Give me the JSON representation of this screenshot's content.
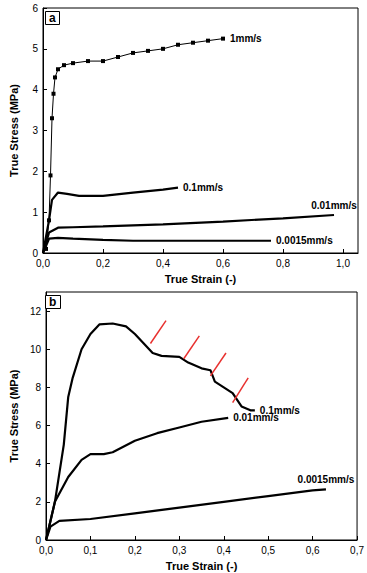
{
  "chart_data": [
    {
      "type": "line",
      "title": "a",
      "x_label": "True Strain (-)",
      "y_label": "True Stress (MPa)",
      "xlim": [
        0,
        1.05
      ],
      "xticks": [
        {
          "value": 0,
          "label": "0,0"
        },
        {
          "value": 0.2,
          "label": "0,2"
        },
        {
          "value": 0.4,
          "label": "0,4"
        },
        {
          "value": 0.6,
          "label": "0,6"
        },
        {
          "value": 0.8,
          "label": "0,8"
        },
        {
          "value": 1.0,
          "label": "1,0"
        }
      ],
      "ylim": [
        0,
        6
      ],
      "yticks": [
        0,
        1,
        2,
        3,
        4,
        5,
        6
      ],
      "grid": false,
      "series": [
        {
          "name": "1mm/s",
          "color": "#000000",
          "marker": "square",
          "x": [
            0.01,
            0.02,
            0.025,
            0.03,
            0.035,
            0.04,
            0.05,
            0.07,
            0.1,
            0.15,
            0.2,
            0.25,
            0.3,
            0.35,
            0.4,
            0.45,
            0.5,
            0.55,
            0.6
          ],
          "values": [
            0.1,
            0.8,
            1.9,
            3.3,
            3.9,
            4.3,
            4.5,
            4.6,
            4.65,
            4.7,
            4.7,
            4.8,
            4.9,
            4.95,
            5.0,
            5.1,
            5.15,
            5.2,
            5.25
          ]
        },
        {
          "name": "0.1mm/s",
          "color": "#000000",
          "marker": "none",
          "x": [
            0,
            0.02,
            0.03,
            0.05,
            0.08,
            0.12,
            0.2,
            0.3,
            0.4,
            0.45
          ],
          "values": [
            0,
            0.8,
            1.3,
            1.48,
            1.45,
            1.4,
            1.4,
            1.48,
            1.55,
            1.6
          ]
        },
        {
          "name": "0.01mm/s",
          "color": "#000000",
          "marker": "none",
          "x": [
            0,
            0.02,
            0.05,
            0.1,
            0.2,
            0.4,
            0.6,
            0.8,
            0.97
          ],
          "values": [
            0,
            0.5,
            0.62,
            0.63,
            0.65,
            0.7,
            0.77,
            0.85,
            0.93
          ]
        },
        {
          "name": "0.0015mm/s",
          "color": "#000000",
          "marker": "none",
          "x": [
            0,
            0.02,
            0.05,
            0.1,
            0.2,
            0.3,
            0.5,
            0.7,
            0.76
          ],
          "values": [
            0,
            0.35,
            0.37,
            0.35,
            0.32,
            0.3,
            0.3,
            0.3,
            0.3
          ]
        }
      ]
    },
    {
      "type": "line",
      "title": "b",
      "x_label": "True Strain (-)",
      "y_label": "True Stress (MPa)",
      "xlim": [
        0,
        0.7
      ],
      "xticks": [
        {
          "value": 0,
          "label": "0,0"
        },
        {
          "value": 0.1,
          "label": "0,1"
        },
        {
          "value": 0.2,
          "label": "0,2"
        },
        {
          "value": 0.3,
          "label": "0,3"
        },
        {
          "value": 0.4,
          "label": "0,4"
        },
        {
          "value": 0.5,
          "label": "0,5"
        },
        {
          "value": 0.6,
          "label": "0,6"
        },
        {
          "value": 0.7,
          "label": "0,7"
        }
      ],
      "ylim": [
        0,
        13
      ],
      "yticks": [
        0,
        2,
        4,
        6,
        8,
        10,
        12
      ],
      "grid": false,
      "series": [
        {
          "name": "0.1mm/s",
          "color": "#000000",
          "marker": "none",
          "x": [
            0,
            0.02,
            0.04,
            0.05,
            0.06,
            0.08,
            0.1,
            0.12,
            0.15,
            0.18,
            0.2,
            0.22,
            0.24,
            0.26,
            0.3,
            0.32,
            0.35,
            0.37,
            0.38,
            0.4,
            0.42,
            0.44,
            0.46,
            0.47
          ],
          "values": [
            0,
            2,
            5,
            7.5,
            8.5,
            10,
            10.8,
            11.3,
            11.35,
            11.2,
            10.8,
            10.3,
            9.8,
            9.65,
            9.6,
            9.3,
            9.0,
            8.9,
            8.3,
            8.0,
            7.7,
            7.0,
            6.8,
            6.8
          ]
        },
        {
          "name": "0.01mm/s",
          "color": "#000000",
          "marker": "none",
          "x": [
            0,
            0.02,
            0.05,
            0.08,
            0.1,
            0.13,
            0.15,
            0.2,
            0.25,
            0.3,
            0.35,
            0.41
          ],
          "values": [
            0,
            2,
            3.3,
            4.2,
            4.5,
            4.5,
            4.6,
            5.2,
            5.6,
            5.9,
            6.2,
            6.4
          ]
        },
        {
          "name": "0.0015mm/s",
          "color": "#000000",
          "marker": "none",
          "x": [
            0,
            0.01,
            0.03,
            0.1,
            0.2,
            0.3,
            0.4,
            0.5,
            0.6,
            0.63
          ],
          "values": [
            0,
            0.7,
            1.0,
            1.1,
            1.4,
            1.7,
            2.0,
            2.3,
            2.6,
            2.65
          ]
        }
      ],
      "annotation_lines": [
        {
          "color": "#e8312f",
          "x": [
            0.235,
            0.27
          ],
          "y": [
            10.3,
            11.5
          ]
        },
        {
          "color": "#e8312f",
          "x": [
            0.31,
            0.345
          ],
          "y": [
            9.5,
            10.7
          ]
        },
        {
          "color": "#e8312f",
          "x": [
            0.37,
            0.405
          ],
          "y": [
            8.6,
            9.8
          ]
        },
        {
          "color": "#e8312f",
          "x": [
            0.42,
            0.455
          ],
          "y": [
            7.2,
            8.5
          ]
        }
      ]
    }
  ]
}
